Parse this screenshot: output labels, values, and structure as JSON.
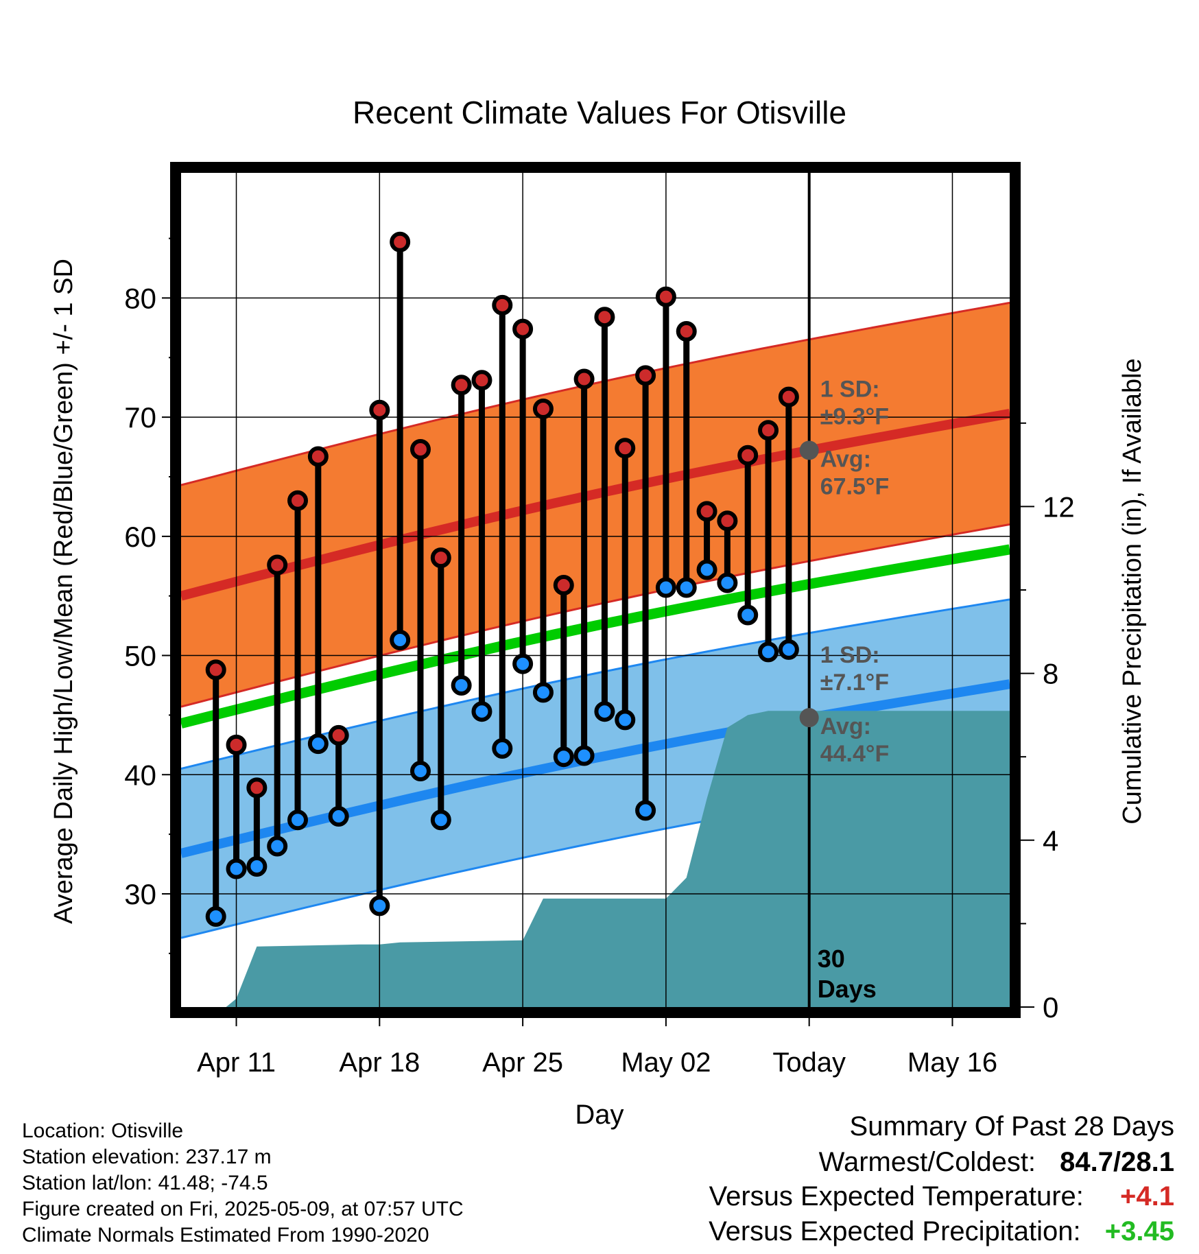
{
  "chart_data": {
    "type": "line",
    "title": "Recent Climate Values For Otisville",
    "xlabel": "Day",
    "ylabel": "Average Daily High/Low/Mean (Red/Blue/Green) +/- 1 SD",
    "y2label": "Cumulative Precipitation (in), If Available",
    "x_tick_labels": [
      "Apr 11",
      "Apr 18",
      "Apr 25",
      "May 02",
      "Today",
      "May 16"
    ],
    "x_tick_days": [
      0,
      7,
      14,
      21,
      28,
      35
    ],
    "x_range_days": [
      -2.7,
      37.8
    ],
    "ylim": [
      20.5,
      90.5
    ],
    "y_ticks": [
      30,
      40,
      50,
      60,
      70,
      80
    ],
    "y2lim": [
      0,
      20
    ],
    "y2_ticks": [
      0,
      4,
      8,
      12
    ],
    "today_day": 28,
    "grid": true,
    "daily_days": [
      -1,
      0,
      1,
      2,
      3,
      4,
      5,
      7,
      8,
      9,
      10,
      11,
      12,
      13,
      14,
      15,
      16,
      17,
      18,
      19,
      20,
      21,
      22,
      23,
      24,
      25,
      26,
      27
    ],
    "daily_high": [
      48.8,
      42.5,
      38.9,
      57.6,
      63.0,
      66.7,
      43.3,
      70.6,
      84.7,
      67.3,
      58.2,
      72.7,
      73.1,
      79.4,
      77.4,
      70.7,
      55.9,
      73.2,
      78.4,
      67.4,
      73.5,
      80.1,
      77.2,
      62.1,
      61.3,
      66.8,
      68.9,
      71.7
    ],
    "daily_low": [
      28.1,
      32.1,
      32.3,
      34.0,
      36.2,
      42.6,
      36.5,
      29.0,
      51.3,
      40.3,
      36.2,
      47.5,
      45.3,
      42.2,
      49.3,
      46.9,
      41.5,
      41.6,
      45.3,
      44.6,
      37.0,
      55.7,
      55.7,
      57.2,
      56.1,
      53.4,
      50.3,
      50.5
    ],
    "normal_days": [
      -2.7,
      37.8
    ],
    "normal_high": [
      55.0,
      70.3
    ],
    "normal_low": [
      33.4,
      47.6
    ],
    "normal_mean": [
      44.3,
      58.9
    ],
    "high_sd": 9.3,
    "low_sd": 7.1,
    "annotations": {
      "high_sd": "1 SD:\n±9.3°F",
      "high_avg": "Avg:\n67.5°F",
      "low_sd": "1 SD:\n±7.1°F",
      "low_avg": "Avg:\n44.4°F",
      "days": "30\nDays"
    },
    "precip_days": [
      -2.7,
      -0.5,
      0,
      1,
      6,
      7,
      8,
      14,
      15,
      21,
      22,
      23,
      24,
      25,
      26,
      27,
      28,
      37.8
    ],
    "precip_values": [
      0,
      0,
      0.2,
      1.45,
      1.5,
      1.5,
      1.55,
      1.6,
      2.6,
      2.6,
      3.1,
      5.0,
      6.7,
      7.0,
      7.1,
      7.1,
      7.1,
      7.1
    ],
    "series": [
      {
        "name": "Daily High",
        "color": "#cc2b2b"
      },
      {
        "name": "Daily Low",
        "color": "#1e90ff"
      },
      {
        "name": "Average High",
        "color": "#d52a25"
      },
      {
        "name": "Average Low",
        "color": "#1e87f0"
      },
      {
        "name": "Average Mean",
        "color": "#00cc00"
      },
      {
        "name": "Cumulative Precipitation",
        "color": "#4a9aa5"
      }
    ],
    "colors": {
      "high_band": "#f47b31",
      "low_band": "#7fc0ea",
      "precip": "#4a9aa5",
      "annotation": "#555555",
      "marker_outline": "#000000"
    }
  },
  "footer": {
    "location": "Location: Otisville",
    "elevation": "Station elevation: 237.17 m",
    "latlon": "Station lat/lon: 41.48; -74.5",
    "created": "Figure created on Fri, 2025-05-09, at 07:57 UTC",
    "normals": "Climate Normals Estimated From 1990-2020"
  },
  "summary": {
    "title": "Summary Of Past 28 Days",
    "warmest_label": "Warmest/Coldest:",
    "warmest_value": "84.7/28.1",
    "temp_label": "Versus Expected Temperature:",
    "temp_value": "+4.1",
    "temp_color": "#d52a25",
    "precip_label": "Versus Expected Precipitation:",
    "precip_value": "+3.45",
    "precip_color": "#22bb22"
  }
}
